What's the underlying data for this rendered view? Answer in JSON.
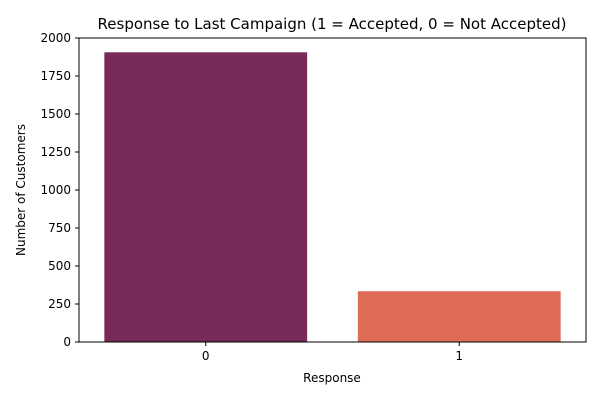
{
  "chart_data": {
    "type": "bar",
    "title": "Response to Last Campaign (1 = Accepted, 0 = Not Accepted)",
    "xlabel": "Response",
    "ylabel": "Number of Customers",
    "categories": [
      "0",
      "1"
    ],
    "values": [
      1906,
      334
    ],
    "colors": [
      "#782A58",
      "#DE6B56"
    ],
    "ylim": [
      0,
      2000
    ],
    "yticks": [
      0,
      250,
      500,
      750,
      1000,
      1250,
      1500,
      1750,
      2000
    ],
    "grid": false,
    "legend": "none"
  }
}
